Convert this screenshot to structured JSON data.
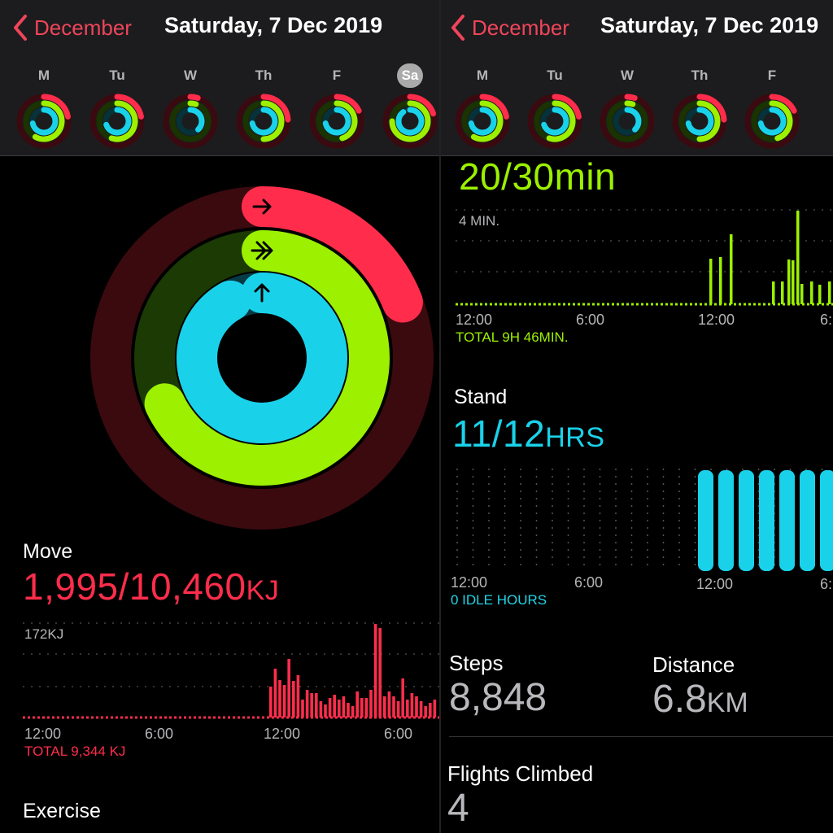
{
  "colors": {
    "move": "#ff2d4b",
    "exercise": "#9cf000",
    "stand": "#19d2ea",
    "nav": "#f0455a",
    "idle": "#1ed6e8"
  },
  "left": {
    "header": {
      "back_label": "December",
      "date": "Saturday, 7 Dec 2019"
    },
    "days": [
      {
        "label": "M",
        "selected": false
      },
      {
        "label": "Tu",
        "selected": false
      },
      {
        "label": "W",
        "selected": false
      },
      {
        "label": "Th",
        "selected": false
      },
      {
        "label": "F",
        "selected": false
      },
      {
        "label": "Sa",
        "selected": true
      }
    ],
    "move": {
      "title": "Move",
      "value": "1,995/10,460",
      "unit": "KJ",
      "max_label": "172KJ",
      "total": "TOTAL 9,344 KJ",
      "axis": [
        "12:00",
        "6:00",
        "12:00",
        "6:00"
      ]
    },
    "exercise": {
      "title": "Exercise"
    }
  },
  "right": {
    "header": {
      "back_label": "December",
      "date": "Saturday, 7 Dec 2019"
    },
    "days": [
      {
        "label": "M",
        "selected": false
      },
      {
        "label": "Tu",
        "selected": false
      },
      {
        "label": "W",
        "selected": false
      },
      {
        "label": "Th",
        "selected": false
      },
      {
        "label": "F",
        "selected": false
      }
    ],
    "exercise": {
      "value": "20/30min",
      "max_label": "4 MIN.",
      "total": "TOTAL 9H 46MIN.",
      "axis": [
        "12:00",
        "6:00",
        "12:00",
        "6:"
      ]
    },
    "stand": {
      "title": "Stand",
      "value": "11/12",
      "unit": "HRS",
      "idle": "0 IDLE HOURS",
      "axis": [
        "12:00",
        "6:00",
        "12:00",
        "6:"
      ]
    },
    "steps": {
      "title": "Steps",
      "value": "8,848"
    },
    "distance": {
      "title": "Distance",
      "value": "6.8",
      "unit": "KM"
    },
    "flights": {
      "title": "Flights Climbed",
      "value": "4"
    }
  }
}
